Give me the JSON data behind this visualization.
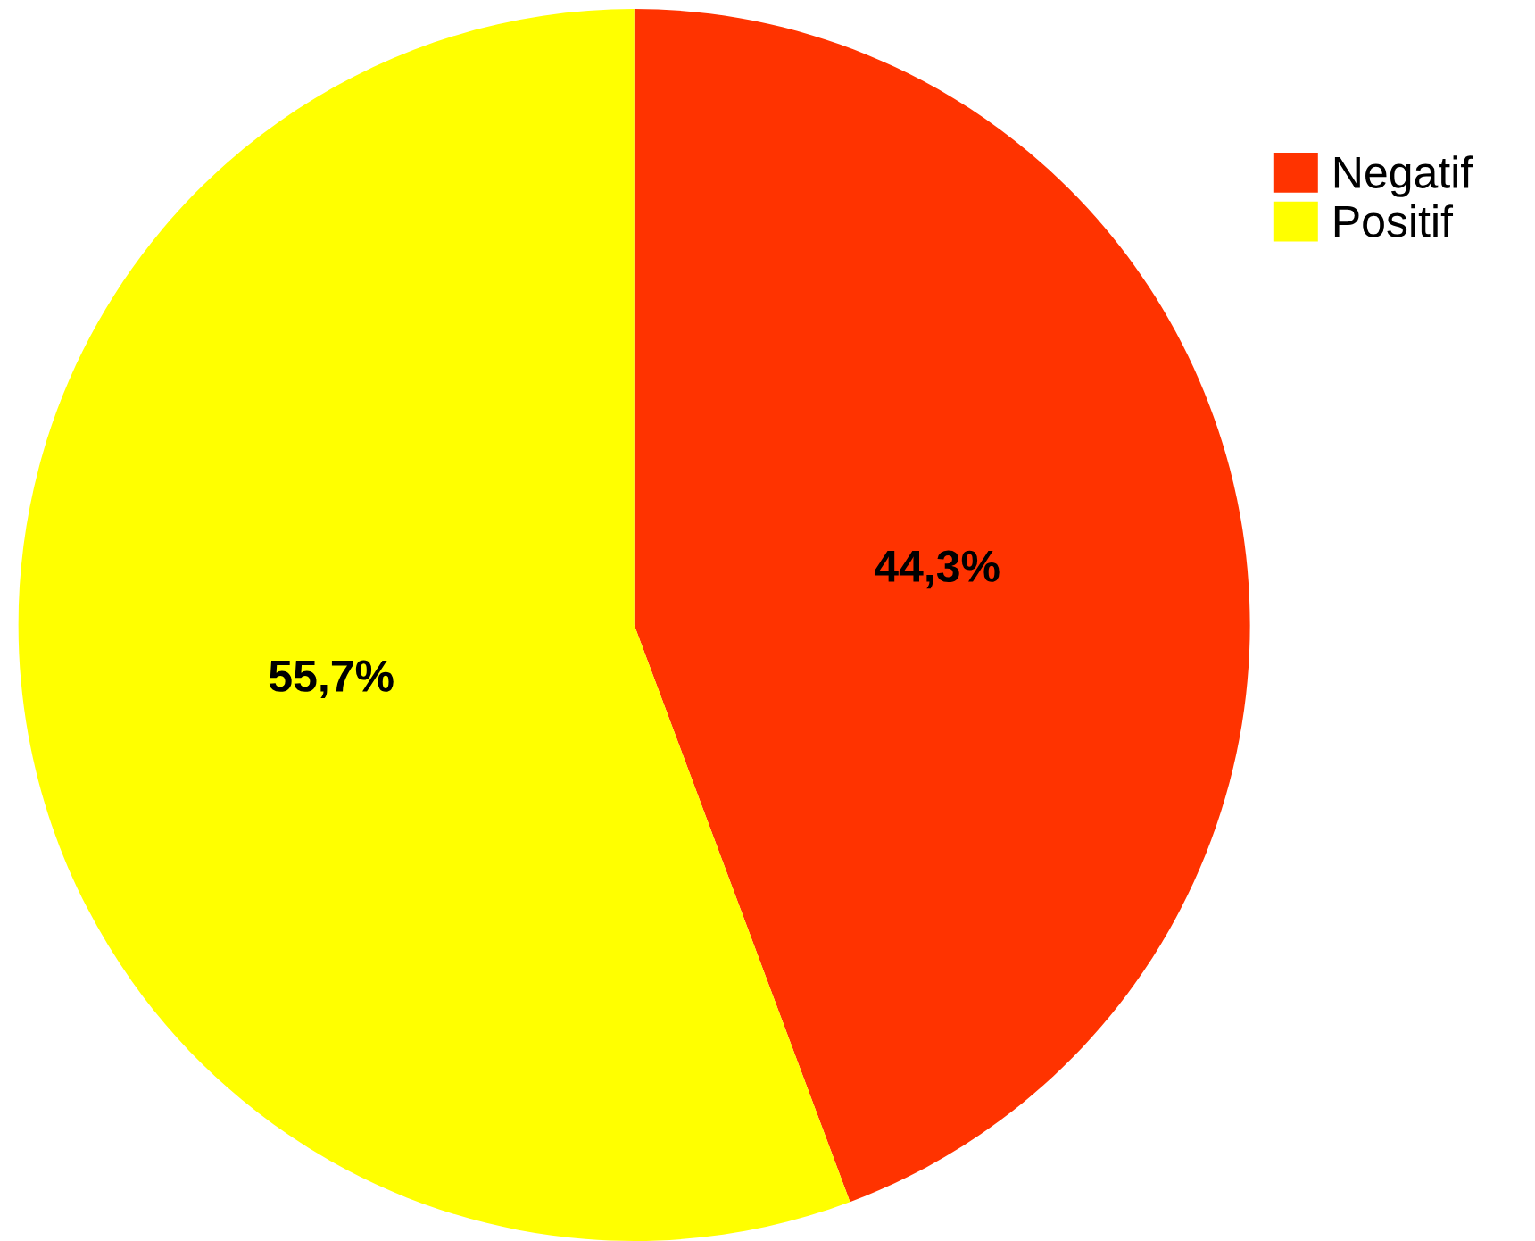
{
  "chart_data": {
    "type": "pie",
    "categories": [
      "Negatif",
      "Positif"
    ],
    "values": [
      44.3,
      55.7
    ],
    "colors": [
      "#ff3300",
      "#ffff00"
    ],
    "value_labels": [
      "44,3%",
      "55,7%"
    ],
    "legend": "top right"
  }
}
